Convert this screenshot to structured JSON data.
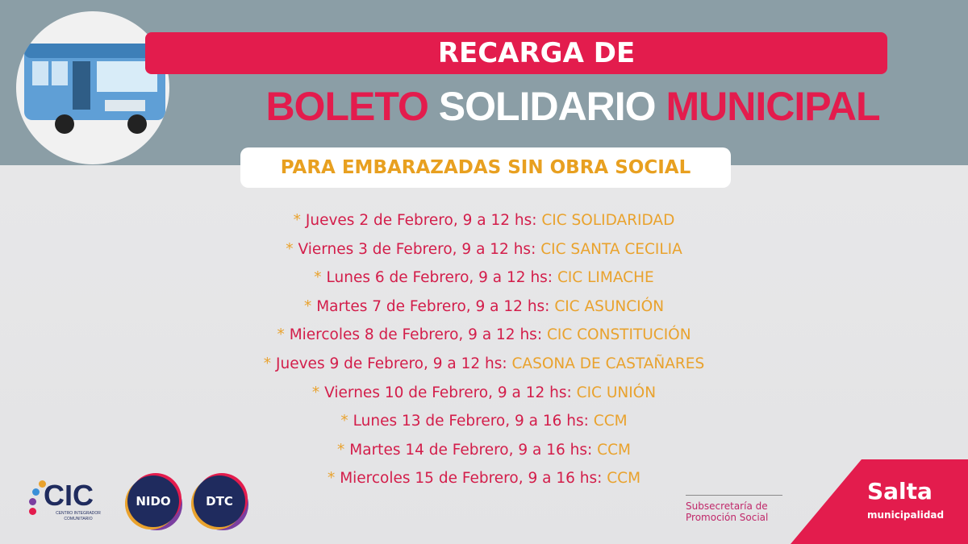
{
  "header": {
    "line1": "RECARGA DE",
    "line2_a": "BOLETO",
    "line2_b": "SOLIDARIO",
    "line2_c": "MUNICIPAL",
    "subtitle": "PARA EMBARAZADAS SIN OBRA SOCIAL"
  },
  "schedule": [
    {
      "date": "Jueves 2 de Febrero, 9 a 12 hs:",
      "place": "CIC SOLIDARIDAD"
    },
    {
      "date": "Viernes 3 de Febrero, 9 a 12 hs:",
      "place": "CIC SANTA CECILIA"
    },
    {
      "date": "Lunes 6 de Febrero, 9 a 12 hs:",
      "place": "CIC LIMACHE"
    },
    {
      "date": "Martes 7 de Febrero, 9 a 12 hs:",
      "place": "CIC ASUNCIÓN"
    },
    {
      "date": "Miercoles 8 de Febrero, 9 a 12 hs:",
      "place": "CIC CONSTITUCIÓN"
    },
    {
      "date": "Jueves 9 de Febrero, 9 a 12 hs:",
      "place": "CASONA DE CASTAÑARES"
    },
    {
      "date": "Viernes 10 de Febrero, 9 a 12 hs:",
      "place": "CIC UNIÓN"
    },
    {
      "date": "Lunes 13 de Febrero, 9 a 16 hs:",
      "place": "CCM"
    },
    {
      "date": "Martes 14 de Febrero, 9 a 16 hs:",
      "place": "CCM"
    },
    {
      "date": "Miercoles 15 de Febrero, 9 a 16 hs:",
      "place": "CCM"
    }
  ],
  "footer": {
    "cic": "CIC",
    "cic_sub": "CENTRO INTEGRADOR COMUNITARIO",
    "nido": "NIDO",
    "dtc": "DTC",
    "subsec_1": "Subsecretaría de",
    "subsec_2": "Promoción Social",
    "salta": "Salta",
    "salta_sub": "municipalidad"
  },
  "colors": {
    "red": "#e31c4d",
    "orange": "#e9a22d",
    "band": "#8b9ea6",
    "navy": "#1f2b5e"
  }
}
